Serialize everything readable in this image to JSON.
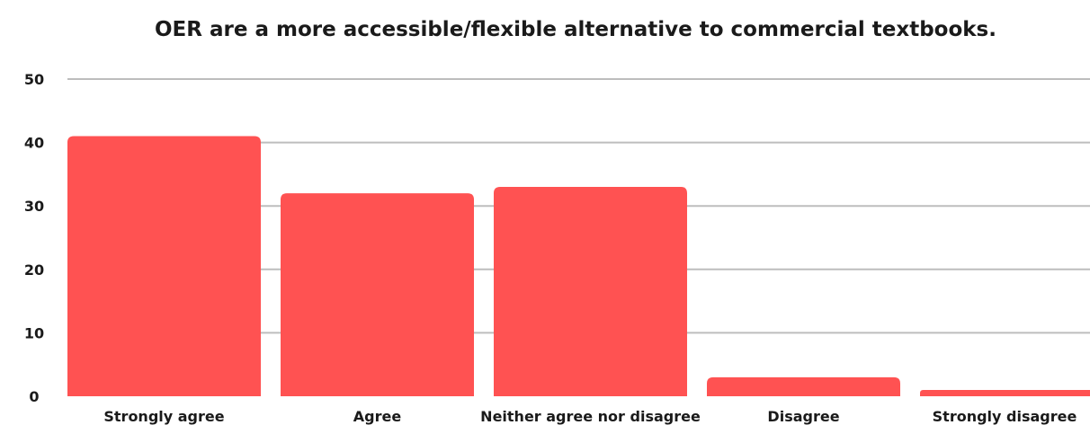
{
  "chart_data": {
    "type": "bar",
    "title": "OER are a more accessible/flexible alternative to commercial textbooks.",
    "categories": [
      "Strongly agree",
      "Agree",
      "Neither agree nor disagree",
      "Disagree",
      "Strongly disagree"
    ],
    "values": [
      41,
      32,
      33,
      3,
      1
    ],
    "ylim": [
      0,
      50
    ],
    "yticks": [
      "0",
      "10",
      "20",
      "30",
      "40",
      "50"
    ],
    "xlabel": "",
    "ylabel": "",
    "grid": true,
    "bar_color": "#ff5252"
  }
}
